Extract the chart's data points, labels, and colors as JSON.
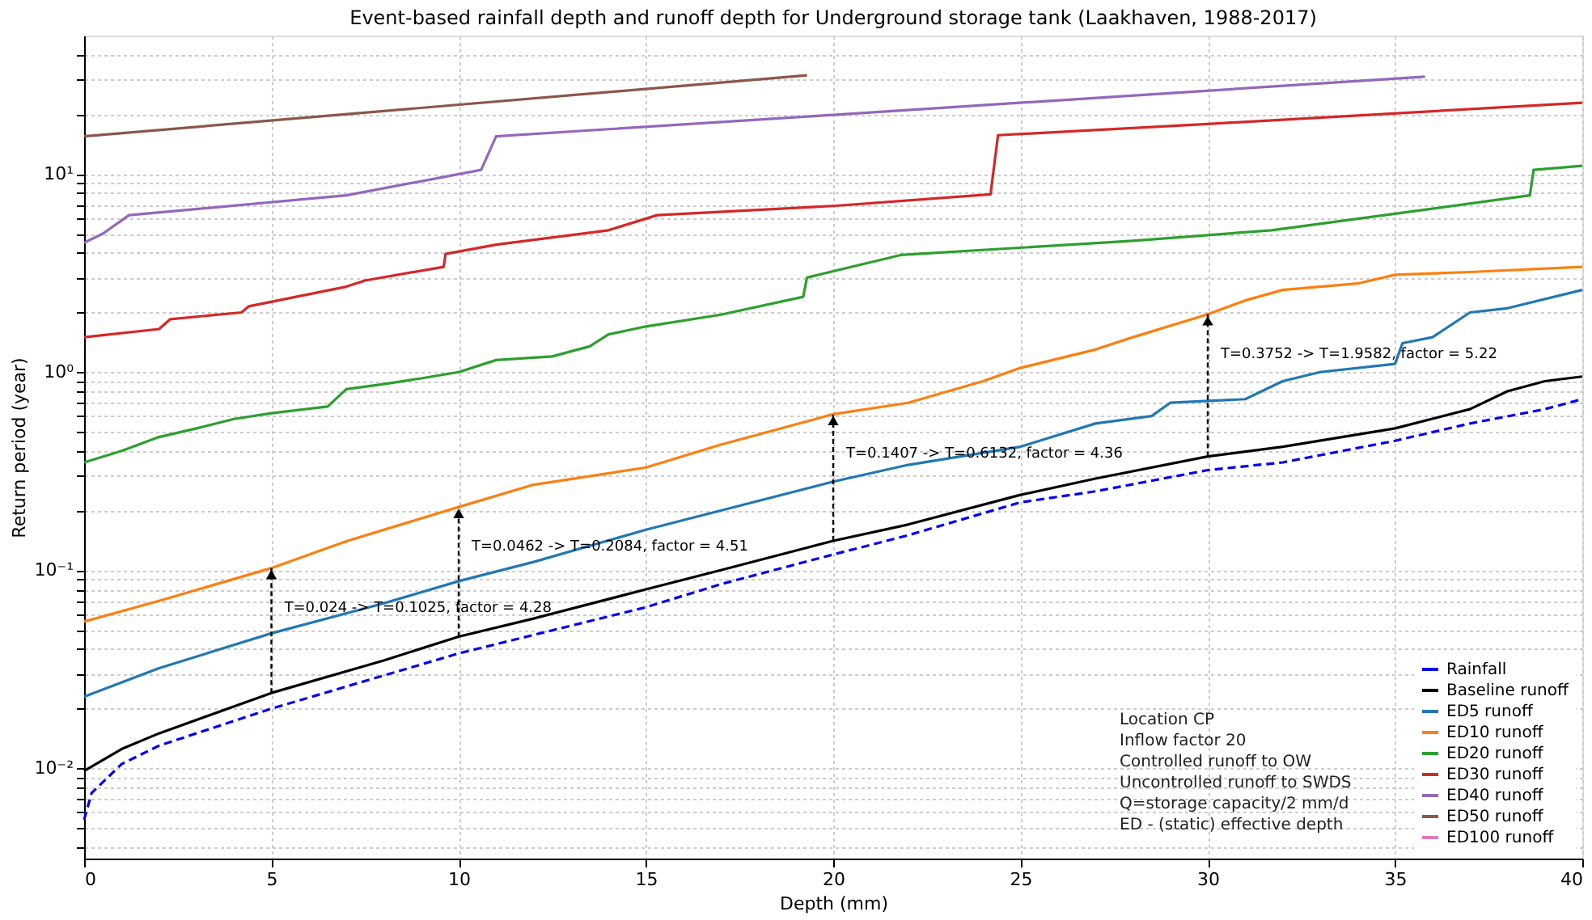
{
  "chart_data": {
    "type": "line",
    "title": "Event-based rainfall depth and runoff depth for Underground storage tank (Laakhaven, 1988-2017)",
    "xlabel": "Depth (mm)",
    "ylabel": "Return period (year)",
    "log": "y",
    "grid": true,
    "legend": "bottom right",
    "marker": "none",
    "xlim": [
      0,
      40
    ],
    "xticks": [
      0,
      5,
      10,
      15,
      20,
      25,
      30,
      35,
      40
    ],
    "ylim": [
      0.0035,
      50
    ],
    "yticks": [
      {
        "value": 0.004,
        "label": null
      },
      {
        "value": 0.005,
        "label": null
      },
      {
        "value": 0.006,
        "label": null
      },
      {
        "value": 0.007,
        "label": null
      },
      {
        "value": 0.008,
        "label": null
      },
      {
        "value": 0.009,
        "label": null
      },
      {
        "value": 0.01,
        "label": "10⁻²"
      },
      {
        "value": 0.02,
        "label": null
      },
      {
        "value": 0.03,
        "label": null
      },
      {
        "value": 0.04,
        "label": null
      },
      {
        "value": 0.05,
        "label": null
      },
      {
        "value": 0.06,
        "label": null
      },
      {
        "value": 0.07,
        "label": null
      },
      {
        "value": 0.08,
        "label": null
      },
      {
        "value": 0.09,
        "label": null
      },
      {
        "value": 0.1,
        "label": "10⁻¹"
      },
      {
        "value": 0.2,
        "label": null
      },
      {
        "value": 0.3,
        "label": null
      },
      {
        "value": 0.4,
        "label": null
      },
      {
        "value": 0.5,
        "label": null
      },
      {
        "value": 0.6,
        "label": null
      },
      {
        "value": 0.7,
        "label": null
      },
      {
        "value": 0.8,
        "label": null
      },
      {
        "value": 0.9,
        "label": null
      },
      {
        "value": 1,
        "label": "10⁰"
      },
      {
        "value": 2,
        "label": null
      },
      {
        "value": 3,
        "label": null
      },
      {
        "value": 4,
        "label": null
      },
      {
        "value": 5,
        "label": null
      },
      {
        "value": 6,
        "label": null
      },
      {
        "value": 7,
        "label": null
      },
      {
        "value": 8,
        "label": null
      },
      {
        "value": 9,
        "label": null
      },
      {
        "value": 10,
        "label": "10¹"
      },
      {
        "value": 20,
        "label": null
      },
      {
        "value": 30,
        "label": null
      },
      {
        "value": 40,
        "label": null
      }
    ],
    "series": [
      {
        "name": "Rainfall",
        "color": "#0000ff",
        "line_style": "dashed",
        "x": [
          0,
          0.2,
          1,
          2,
          5,
          10,
          15,
          17,
          20,
          22,
          25,
          27,
          30,
          32,
          35,
          37,
          39,
          40
        ],
        "values": [
          0.0055,
          0.0075,
          0.0105,
          0.013,
          0.02,
          0.038,
          0.065,
          0.085,
          0.12,
          0.15,
          0.22,
          0.25,
          0.32,
          0.35,
          0.45,
          0.55,
          0.65,
          0.73
        ]
      },
      {
        "name": "Baseline runoff",
        "color": "#000000",
        "x": [
          0,
          1,
          2,
          5,
          8,
          10,
          12,
          15,
          17,
          20,
          22,
          25,
          27,
          30,
          32,
          35,
          37,
          38,
          39,
          40
        ],
        "values": [
          0.0097,
          0.0125,
          0.015,
          0.024,
          0.035,
          0.0462,
          0.057,
          0.08,
          0.1,
          0.1407,
          0.17,
          0.24,
          0.29,
          0.3752,
          0.42,
          0.52,
          0.65,
          0.8,
          0.9,
          0.95
        ]
      },
      {
        "name": "ED5 runoff",
        "color": "#1f77b4",
        "x": [
          0,
          2,
          5,
          8,
          10,
          12,
          15,
          17,
          20,
          22,
          25,
          27,
          28.5,
          29,
          31,
          32,
          33,
          35,
          35.2,
          36,
          37,
          38,
          40
        ],
        "values": [
          0.023,
          0.032,
          0.048,
          0.068,
          0.088,
          0.11,
          0.16,
          0.2,
          0.28,
          0.34,
          0.42,
          0.55,
          0.6,
          0.7,
          0.73,
          0.9,
          1.0,
          1.1,
          1.4,
          1.5,
          2.0,
          2.1,
          2.6
        ]
      },
      {
        "name": "ED10 runoff",
        "color": "#ff7f0e",
        "x": [
          0,
          2,
          5,
          7,
          10,
          12,
          15,
          17,
          20,
          22,
          24,
          25,
          27,
          28,
          30,
          31,
          32,
          34,
          35,
          37,
          40
        ],
        "values": [
          0.055,
          0.07,
          0.1025,
          0.14,
          0.2084,
          0.27,
          0.33,
          0.43,
          0.6132,
          0.7,
          0.9,
          1.05,
          1.3,
          1.5,
          1.9582,
          2.3,
          2.6,
          2.8,
          3.1,
          3.2,
          3.4
        ]
      },
      {
        "name": "ED20 runoff",
        "color": "#2ca02c",
        "x": [
          0,
          1,
          2,
          3,
          4,
          5,
          6.5,
          7,
          8,
          9,
          10,
          11,
          12.5,
          13.5,
          14,
          15,
          17,
          19.2,
          19.3,
          21.8,
          28,
          31.7,
          35,
          38.6,
          38.7,
          40
        ],
        "values": [
          0.35,
          0.4,
          0.47,
          0.52,
          0.58,
          0.62,
          0.67,
          0.82,
          0.87,
          0.93,
          1.0,
          1.15,
          1.2,
          1.35,
          1.55,
          1.7,
          1.95,
          2.4,
          3.0,
          3.9,
          4.6,
          5.2,
          6.3,
          7.8,
          10.5,
          11
        ]
      },
      {
        "name": "ED30 runoff",
        "color": "#d62728",
        "x": [
          0,
          2,
          2.3,
          4.2,
          4.4,
          7,
          7.5,
          9.6,
          9.65,
          11,
          14,
          15.3,
          20,
          24.2,
          24.4,
          30,
          40
        ],
        "values": [
          1.5,
          1.65,
          1.85,
          2.0,
          2.15,
          2.7,
          2.9,
          3.4,
          3.95,
          4.4,
          5.2,
          6.2,
          6.9,
          7.9,
          15.7,
          17.9,
          22.9
        ]
      },
      {
        "name": "ED40 runoff",
        "color": "#9467bd",
        "x": [
          0,
          0.5,
          1.2,
          7,
          10.6,
          11,
          20,
          35.8
        ],
        "values": [
          4.5,
          5.0,
          6.2,
          7.8,
          10.5,
          15.5,
          19.9,
          31
        ]
      },
      {
        "name": "ED50 runoff",
        "color": "#8c564b",
        "x": [
          0,
          19.3
        ],
        "values": [
          15.5,
          31.5
        ]
      },
      {
        "name": "ED100 runoff",
        "color": "#e377c2"
      }
    ],
    "annotations": [
      {
        "text": "T=0.024 -> T=0.1025, factor = 4.28",
        "x": 5,
        "y": 0.1025
      },
      {
        "text": "T=0.0462 -> T=0.2084, factor = 4.51",
        "x": 10,
        "y": 0.2084
      },
      {
        "text": "T=0.1407 -> T=0.6132, factor = 4.36",
        "x": 20,
        "y": 0.6132
      },
      {
        "text": "T=0.3752 -> T=1.9582, factor = 5.22",
        "x": 30,
        "y": 1.9582
      },
      "Location CP",
      "Inflow factor 20",
      "Controlled runoff to OW",
      "Uncontrolled runoff to SWDS",
      "Q=storage capacity/2 mm/d",
      "ED - (static) effective depth"
    ]
  }
}
